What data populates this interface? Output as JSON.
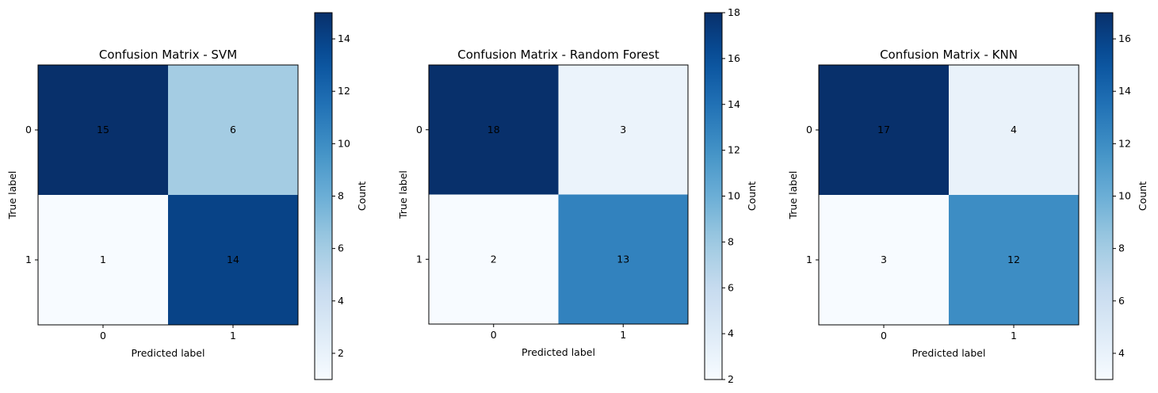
{
  "chart_data": [
    {
      "type": "heatmap",
      "title": "Confusion Matrix - SVM",
      "xlabel": "Predicted label",
      "ylabel": "True label",
      "x_ticks": [
        "0",
        "1"
      ],
      "y_ticks": [
        "0",
        "1"
      ],
      "matrix": [
        [
          15,
          6
        ],
        [
          1,
          14
        ]
      ],
      "colorbar": {
        "label": "Count",
        "min": 1,
        "max": 15,
        "ticks": [
          2,
          4,
          6,
          8,
          10,
          12,
          14
        ]
      },
      "colormap": "Blues"
    },
    {
      "type": "heatmap",
      "title": "Confusion Matrix - Random Forest",
      "xlabel": "Predicted label",
      "ylabel": "True label",
      "x_ticks": [
        "0",
        "1"
      ],
      "y_ticks": [
        "0",
        "1"
      ],
      "matrix": [
        [
          18,
          3
        ],
        [
          2,
          13
        ]
      ],
      "colorbar": {
        "label": "Count",
        "min": 2,
        "max": 18,
        "ticks": [
          2,
          4,
          6,
          8,
          10,
          12,
          14,
          16,
          18
        ]
      },
      "colormap": "Blues"
    },
    {
      "type": "heatmap",
      "title": "Confusion Matrix - KNN",
      "xlabel": "Predicted label",
      "ylabel": "True label",
      "x_ticks": [
        "0",
        "1"
      ],
      "y_ticks": [
        "0",
        "1"
      ],
      "matrix": [
        [
          17,
          4
        ],
        [
          3,
          12
        ]
      ],
      "colorbar": {
        "label": "Count",
        "min": 3,
        "max": 17,
        "ticks": [
          4,
          6,
          8,
          10,
          12,
          14,
          16
        ]
      },
      "colormap": "Blues"
    }
  ]
}
